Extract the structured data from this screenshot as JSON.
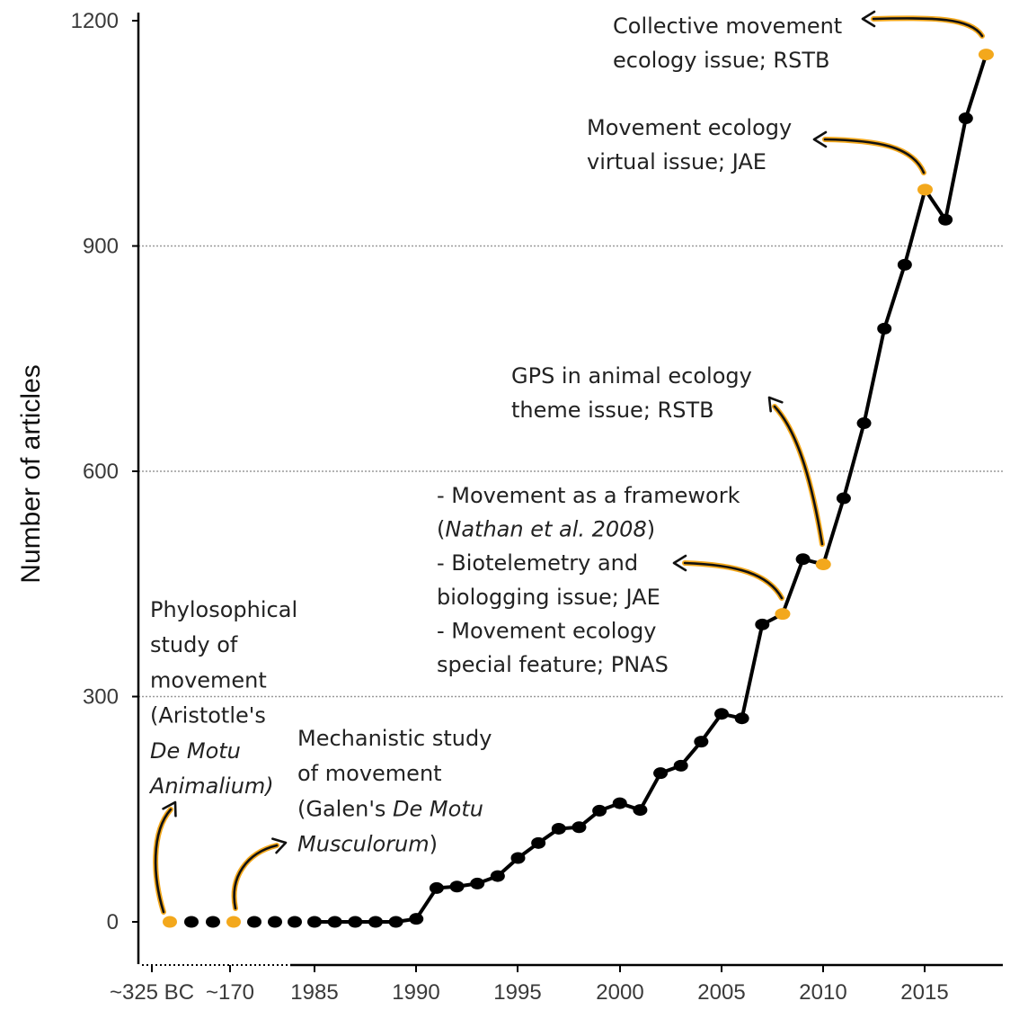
{
  "chart_data": {
    "type": "line",
    "title": "",
    "xlabel": "",
    "ylabel": "Number of articles",
    "ylim": [
      0,
      1200
    ],
    "y_ticks": [
      "0",
      "300",
      "600",
      "900",
      "1200"
    ],
    "x_tick_labels": [
      "~325 BC",
      "~170",
      "1985",
      "1990",
      "1995",
      "2000",
      "2005",
      "2010",
      "2015"
    ],
    "grid": "horizontal dotted at 300, 600, 900",
    "colors": {
      "line": "#000000",
      "point": "#000000",
      "highlight": "#f3a81c"
    },
    "historical_points": [
      {
        "label": "~325 BC",
        "value": 0,
        "highlight": true
      },
      {
        "label": "",
        "value": 0,
        "highlight": false
      },
      {
        "label": "",
        "value": 0,
        "highlight": false
      },
      {
        "label": "~170",
        "value": 0,
        "highlight": true
      },
      {
        "label": "",
        "value": 0,
        "highlight": false
      },
      {
        "label": "",
        "value": 0,
        "highlight": false
      },
      {
        "label": "",
        "value": 0,
        "highlight": false
      }
    ],
    "series": [
      {
        "name": "Number of articles",
        "x": [
          1985,
          1986,
          1987,
          1988,
          1989,
          1990,
          1991,
          1992,
          1993,
          1994,
          1995,
          1996,
          1997,
          1998,
          1999,
          2000,
          2001,
          2002,
          2003,
          2004,
          2005,
          2006,
          2007,
          2008,
          2009,
          2010,
          2011,
          2012,
          2013,
          2014,
          2015,
          2016,
          2017,
          2018
        ],
        "values": [
          0,
          0,
          0,
          0,
          0,
          4,
          45,
          47,
          51,
          61,
          85,
          105,
          124,
          126,
          148,
          158,
          149,
          198,
          208,
          240,
          277,
          271,
          396,
          410,
          483,
          476,
          564,
          664,
          790,
          875,
          975,
          935,
          1070,
          1155
        ],
        "highlight_years": [
          2008,
          2010,
          2015,
          2018
        ]
      }
    ],
    "annotations": [
      {
        "id": "aristotle",
        "lines": [
          [
            {
              "t": "Phylosophical",
              "i": false
            }
          ],
          [
            {
              "t": "study of",
              "i": false
            }
          ],
          [
            {
              "t": "movement",
              "i": false
            }
          ],
          [
            {
              "t": "(Aristotle's",
              "i": false
            }
          ],
          [
            {
              "t": "De Motu",
              "i": true
            }
          ],
          [
            {
              "t": "Animalium)",
              "i": true
            }
          ]
        ]
      },
      {
        "id": "galen",
        "lines": [
          [
            {
              "t": "Mechanistic study",
              "i": false
            }
          ],
          [
            {
              "t": "of movement",
              "i": false
            }
          ],
          [
            {
              "t": "(Galen's ",
              "i": false
            },
            {
              "t": "De Motu",
              "i": true
            }
          ],
          [
            {
              "t": "Musculorum",
              "i": true
            },
            {
              "t": ")",
              "i": false
            }
          ]
        ]
      },
      {
        "id": "framework",
        "lines": [
          [
            {
              "t": "- Movement as a framework",
              "i": false
            }
          ],
          [
            {
              "t": "(",
              "i": false
            },
            {
              "t": "Nathan et al. 2008",
              "i": true
            },
            {
              "t": ")",
              "i": false
            }
          ],
          [
            {
              "t": "- Biotelemetry and",
              "i": false
            }
          ],
          [
            {
              "t": "biologging issue; JAE",
              "i": false
            }
          ],
          [
            {
              "t": "- Movement ecology",
              "i": false
            }
          ],
          [
            {
              "t": "special feature; PNAS",
              "i": false
            }
          ]
        ]
      },
      {
        "id": "gps",
        "lines": [
          [
            {
              "t": "GPS in animal ecology",
              "i": false
            }
          ],
          [
            {
              "t": "theme issue; RSTB",
              "i": false
            }
          ]
        ]
      },
      {
        "id": "virtual",
        "lines": [
          [
            {
              "t": "Movement ecology",
              "i": false
            }
          ],
          [
            {
              "t": "virtual issue; JAE",
              "i": false
            }
          ]
        ]
      },
      {
        "id": "collective",
        "lines": [
          [
            {
              "t": "Collective movement",
              "i": false
            }
          ],
          [
            {
              "t": "ecology issue; RSTB",
              "i": false
            }
          ]
        ]
      }
    ]
  }
}
